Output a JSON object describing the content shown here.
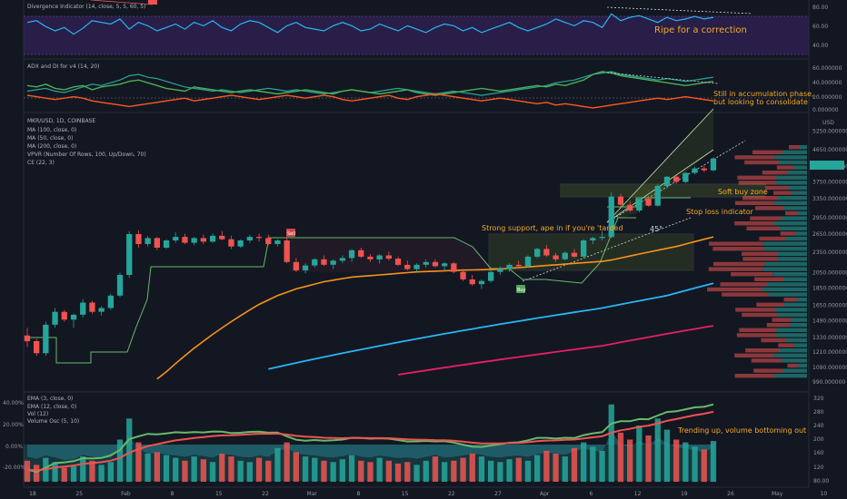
{
  "colors": {
    "background": "#131722",
    "grid": "#1e222d",
    "up": "#26a69a",
    "down": "#ef5350",
    "ma100": "#f7931a",
    "ma50": "#29b6f6",
    "ma200": "#e91e63",
    "annotation": "#f7a928",
    "zone_border": "#c5e1a5",
    "zone_fill": "#9acd32"
  },
  "panel_divergence": {
    "title": "Divergence Indicator (14, close, 5, 5, 60, 5)",
    "yticks": [
      "80.00",
      "60.00",
      "40.00"
    ],
    "note": "Ripe for a correction"
  },
  "panel_adx": {
    "title": "ADX and DI for v4 (14, 20)",
    "yticks": [
      "60.000000",
      "40.000000",
      "20.000000",
      "0.000000"
    ],
    "note_line1": "Still in accumulation phase,",
    "note_line2": "but looking to consolidate"
  },
  "panel_price": {
    "header": [
      "MKR/USD, 1D, COINBASE",
      "MA (100, close, 0)",
      "MA (50, close, 0)",
      "MA (200, close, 0)",
      "VPVR (Number Of Rows, 100, Up/Down, 70)",
      "CE (22, 3)"
    ],
    "currency": "USD",
    "yticks": [
      "5250.000000",
      "4650.000000",
      "4150.000000",
      "3750.000000",
      "3350.000000",
      "2950.000000",
      "2650.000000",
      "2350.000000",
      "2050.000000",
      "1850.000000",
      "1650.000000",
      "1490.000000",
      "1330.000000",
      "1210.000000",
      "1090.000000",
      "990.000000"
    ],
    "notes": {
      "soft_buy": "Soft buy zone",
      "stop_loss": "Stop loss indicator",
      "strong_support": "Strong support, ape in if you're 'tarded",
      "angle": "45°",
      "sell": "Sell",
      "buy": "Buy"
    }
  },
  "panel_volume": {
    "header": [
      "EMA (3, close, 0)",
      "EMA (12, close, 0)",
      "Vol (12)",
      "Volume Osc (5, 10)"
    ],
    "yticks_left": [
      "40.00%",
      "20.00%",
      "0.00%",
      "-20.00%"
    ],
    "yticks_right": [
      "320",
      "280",
      "240",
      "200",
      "160",
      "120",
      "80.00"
    ],
    "note": "Trending up, volume bottoming out"
  },
  "x_axis": {
    "ticks": [
      "18",
      "25",
      "Feb",
      "8",
      "15",
      "22",
      "Mar",
      "8",
      "15",
      "22",
      "27",
      "Apr",
      "6",
      "12",
      "19",
      "26",
      "May",
      "10",
      "17"
    ]
  },
  "chart_data": [
    {
      "type": "line",
      "title": "Divergence Indicator (14, close, 5, 5, 60, 5)",
      "ylim": [
        30,
        90
      ],
      "series": [
        {
          "values": [
            70,
            72,
            65,
            60,
            64,
            56,
            63,
            72,
            70,
            68,
            74,
            62,
            70,
            66,
            60,
            64,
            68,
            62,
            70,
            66,
            72,
            64,
            60,
            68,
            72,
            70,
            64,
            58,
            66,
            70,
            64,
            62,
            60,
            66,
            70,
            66,
            60,
            62,
            68,
            64,
            60,
            66,
            62,
            58,
            64,
            68,
            66,
            60,
            64,
            58,
            62,
            66,
            70,
            64,
            60,
            64,
            68,
            74,
            70,
            66,
            72,
            70,
            64,
            80,
            72,
            76,
            78,
            74,
            70,
            76,
            72,
            74,
            77,
            74,
            76
          ]
        }
      ]
    },
    {
      "type": "line",
      "title": "ADX and DI for v4 (14, 20)",
      "ylim": [
        0,
        65
      ],
      "series": [
        {
          "values": [
            28,
            30,
            32,
            28,
            26,
            30,
            34,
            38,
            36,
            40,
            44,
            50,
            52,
            48,
            46,
            42,
            38,
            34,
            32,
            30,
            28,
            30,
            28,
            26,
            28,
            30,
            32,
            30,
            28,
            30,
            28,
            26,
            24,
            26,
            28,
            30,
            28,
            26,
            28,
            30,
            32,
            30,
            28,
            26,
            24,
            26,
            28,
            26,
            24,
            22,
            24,
            26,
            28,
            30,
            32,
            34,
            36,
            40,
            42,
            44,
            48,
            52,
            54,
            56,
            52,
            50,
            48,
            46,
            44,
            46,
            44,
            42,
            44,
            46,
            48
          ]
        },
        {
          "values": [
            36,
            34,
            38,
            32,
            30,
            34,
            36,
            30,
            34,
            36,
            38,
            42,
            44,
            40,
            36,
            32,
            30,
            28,
            34,
            32,
            30,
            28,
            26,
            28,
            30,
            28,
            26,
            24,
            26,
            28,
            30,
            28,
            26,
            24,
            28,
            30,
            28,
            26,
            24,
            26,
            28,
            30,
            26,
            24,
            22,
            24,
            26,
            28,
            30,
            32,
            30,
            28,
            30,
            32,
            34,
            36,
            34,
            38,
            36,
            40,
            44,
            52,
            56,
            54,
            50,
            48,
            46,
            44,
            42,
            40,
            38,
            36,
            38,
            40,
            42
          ]
        },
        {
          "values": [
            22,
            20,
            18,
            16,
            18,
            20,
            18,
            14,
            12,
            10,
            8,
            6,
            8,
            10,
            12,
            14,
            16,
            18,
            14,
            16,
            18,
            20,
            22,
            20,
            18,
            16,
            18,
            20,
            22,
            20,
            18,
            20,
            22,
            20,
            16,
            14,
            16,
            18,
            20,
            22,
            18,
            16,
            20,
            22,
            24,
            22,
            20,
            18,
            16,
            14,
            16,
            18,
            16,
            14,
            12,
            10,
            12,
            8,
            10,
            8,
            6,
            4,
            6,
            8,
            10,
            12,
            14,
            16,
            18,
            16,
            18,
            20,
            18,
            16,
            14
          ]
        }
      ]
    },
    {
      "type": "candlestick",
      "title": "MKR/USD, 1D, COINBASE",
      "ylim": [
        950,
        5400
      ],
      "candles": [
        [
          1350,
          1420,
          1250,
          1300
        ],
        [
          1300,
          1320,
          1180,
          1200
        ],
        [
          1200,
          1480,
          1180,
          1450
        ],
        [
          1450,
          1620,
          1420,
          1580
        ],
        [
          1580,
          1600,
          1480,
          1500
        ],
        [
          1500,
          1560,
          1420,
          1550
        ],
        [
          1550,
          1720,
          1520,
          1680
        ],
        [
          1680,
          1700,
          1560,
          1580
        ],
        [
          1580,
          1640,
          1540,
          1620
        ],
        [
          1620,
          1780,
          1600,
          1760
        ],
        [
          1760,
          2050,
          1740,
          2020
        ],
        [
          2020,
          2700,
          1980,
          2650
        ],
        [
          2650,
          2720,
          2420,
          2480
        ],
        [
          2480,
          2620,
          2440,
          2580
        ],
        [
          2580,
          2600,
          2380,
          2420
        ],
        [
          2420,
          2560,
          2400,
          2540
        ],
        [
          2540,
          2680,
          2500,
          2600
        ],
        [
          2600,
          2660,
          2480,
          2500
        ],
        [
          2500,
          2600,
          2460,
          2580
        ],
        [
          2580,
          2640,
          2480,
          2520
        ],
        [
          2520,
          2660,
          2500,
          2620
        ],
        [
          2620,
          2700,
          2540,
          2560
        ],
        [
          2560,
          2620,
          2400,
          2440
        ],
        [
          2440,
          2560,
          2420,
          2540
        ],
        [
          2540,
          2640,
          2500,
          2600
        ],
        [
          2600,
          2660,
          2520,
          2580
        ],
        [
          2580,
          2640,
          2460,
          2480
        ],
        [
          2480,
          2560,
          2440,
          2540
        ],
        [
          2540,
          2600,
          2180,
          2200
        ],
        [
          2200,
          2260,
          2060,
          2080
        ],
        [
          2080,
          2180,
          2040,
          2150
        ],
        [
          2150,
          2260,
          2120,
          2240
        ],
        [
          2240,
          2300,
          2140,
          2160
        ],
        [
          2160,
          2240,
          2100,
          2220
        ],
        [
          2220,
          2300,
          2180,
          2260
        ],
        [
          2260,
          2400,
          2200,
          2380
        ],
        [
          2380,
          2420,
          2260,
          2280
        ],
        [
          2280,
          2320,
          2200,
          2240
        ],
        [
          2240,
          2320,
          2180,
          2300
        ],
        [
          2300,
          2360,
          2220,
          2250
        ],
        [
          2250,
          2280,
          2140,
          2160
        ],
        [
          2160,
          2220,
          2080,
          2100
        ],
        [
          2100,
          2180,
          2060,
          2160
        ],
        [
          2160,
          2240,
          2120,
          2200
        ],
        [
          2200,
          2240,
          2120,
          2140
        ],
        [
          2140,
          2200,
          2080,
          2180
        ],
        [
          2180,
          2200,
          2040,
          2060
        ],
        [
          2060,
          2100,
          1940,
          1960
        ],
        [
          1960,
          2020,
          1880,
          1900
        ],
        [
          1900,
          1960,
          1840,
          1940
        ],
        [
          1940,
          2080,
          1920,
          2060
        ],
        [
          2060,
          2140,
          2020,
          2100
        ],
        [
          2100,
          2180,
          2060,
          2160
        ],
        [
          2160,
          2220,
          2120,
          2140
        ],
        [
          2140,
          2300,
          2120,
          2280
        ],
        [
          2280,
          2420,
          2260,
          2400
        ],
        [
          2400,
          2460,
          2280,
          2300
        ],
        [
          2300,
          2340,
          2200,
          2240
        ],
        [
          2240,
          2360,
          2220,
          2340
        ],
        [
          2340,
          2400,
          2260,
          2280
        ],
        [
          2280,
          2560,
          2260,
          2540
        ],
        [
          2540,
          2600,
          2480,
          2580
        ],
        [
          2580,
          2700,
          2540,
          2600
        ],
        [
          2600,
          3500,
          2580,
          3400
        ],
        [
          3400,
          3460,
          3180,
          3220
        ],
        [
          3220,
          3300,
          3060,
          3100
        ],
        [
          3100,
          3380,
          3060,
          3350
        ],
        [
          3350,
          3420,
          3180,
          3200
        ],
        [
          3200,
          3700,
          3180,
          3650
        ],
        [
          3650,
          3900,
          3600,
          3880
        ],
        [
          3880,
          3920,
          3700,
          3750
        ],
        [
          3750,
          4000,
          3720,
          3980
        ],
        [
          3980,
          4150,
          3940,
          4100
        ],
        [
          4100,
          4180,
          4000,
          4050
        ],
        [
          4050,
          4420,
          4020,
          4380
        ]
      ],
      "ma50": [
        null,
        null,
        null,
        null,
        null,
        null,
        null,
        null,
        null,
        null,
        null,
        null,
        null,
        null,
        null,
        null,
        null,
        null,
        null,
        null,
        null,
        null,
        null,
        null,
        null,
        null,
        1080,
        1095,
        1110,
        1125,
        1140,
        1155,
        1170,
        1185,
        1200,
        1215,
        1230,
        1245,
        1260,
        1275,
        1290,
        1305,
        1320,
        1335,
        1350,
        1365,
        1380,
        1395,
        1410,
        1425,
        1440,
        1455,
        1470,
        1485,
        1500,
        1515,
        1530,
        1545,
        1560,
        1575,
        1590,
        1605,
        1620,
        1640,
        1660,
        1680,
        1700,
        1720,
        1740,
        1760,
        1790,
        1820,
        1850,
        1880,
        1910
      ],
      "ma100": [
        null,
        null,
        null,
        null,
        null,
        null,
        null,
        null,
        null,
        null,
        null,
        null,
        null,
        null,
        1010,
        1060,
        1120,
        1180,
        1240,
        1300,
        1360,
        1420,
        1480,
        1540,
        1600,
        1660,
        1710,
        1760,
        1800,
        1840,
        1870,
        1900,
        1930,
        1950,
        1970,
        1990,
        2000,
        2010,
        2020,
        2030,
        2040,
        2050,
        2060,
        2065,
        2070,
        2075,
        2080,
        2085,
        2088,
        2090,
        2095,
        2100,
        2110,
        2120,
        2130,
        2140,
        2150,
        2160,
        2170,
        2180,
        2190,
        2200,
        2210,
        2230,
        2260,
        2290,
        2320,
        2350,
        2380,
        2410,
        2440,
        2480,
        2520,
        2560,
        2600
      ],
      "ma200": [
        null,
        null,
        null,
        null,
        null,
        null,
        null,
        null,
        null,
        null,
        null,
        null,
        null,
        null,
        null,
        null,
        null,
        null,
        null,
        null,
        null,
        null,
        null,
        null,
        null,
        null,
        null,
        null,
        null,
        null,
        null,
        null,
        null,
        null,
        null,
        null,
        null,
        null,
        null,
        null,
        1040,
        1050,
        1060,
        1070,
        1080,
        1090,
        1100,
        1110,
        1120,
        1130,
        1140,
        1150,
        1160,
        1170,
        1180,
        1190,
        1200,
        1210,
        1220,
        1230,
        1240,
        1250,
        1260,
        1275,
        1290,
        1305,
        1320,
        1335,
        1350,
        1365,
        1380,
        1395,
        1410,
        1425,
        1440
      ]
    },
    {
      "type": "bar",
      "title": "Vol (12)",
      "series": [
        {
          "name": "Vol",
          "values": [
            30,
            24,
            34,
            28,
            20,
            22,
            36,
            30,
            24,
            28,
            60,
            90,
            56,
            40,
            42,
            38,
            34,
            30,
            36,
            32,
            28,
            40,
            36,
            30,
            28,
            34,
            30,
            48,
            56,
            42,
            36,
            34,
            30,
            28,
            32,
            38,
            30,
            28,
            34,
            30,
            26,
            28,
            24,
            30,
            36,
            28,
            30,
            34,
            40,
            36,
            30,
            28,
            32,
            34,
            30,
            38,
            44,
            40,
            36,
            48,
            56,
            50,
            44,
            110,
            70,
            60,
            80,
            66,
            90,
            74,
            60,
            56,
            50,
            46,
            58
          ]
        }
      ]
    }
  ]
}
